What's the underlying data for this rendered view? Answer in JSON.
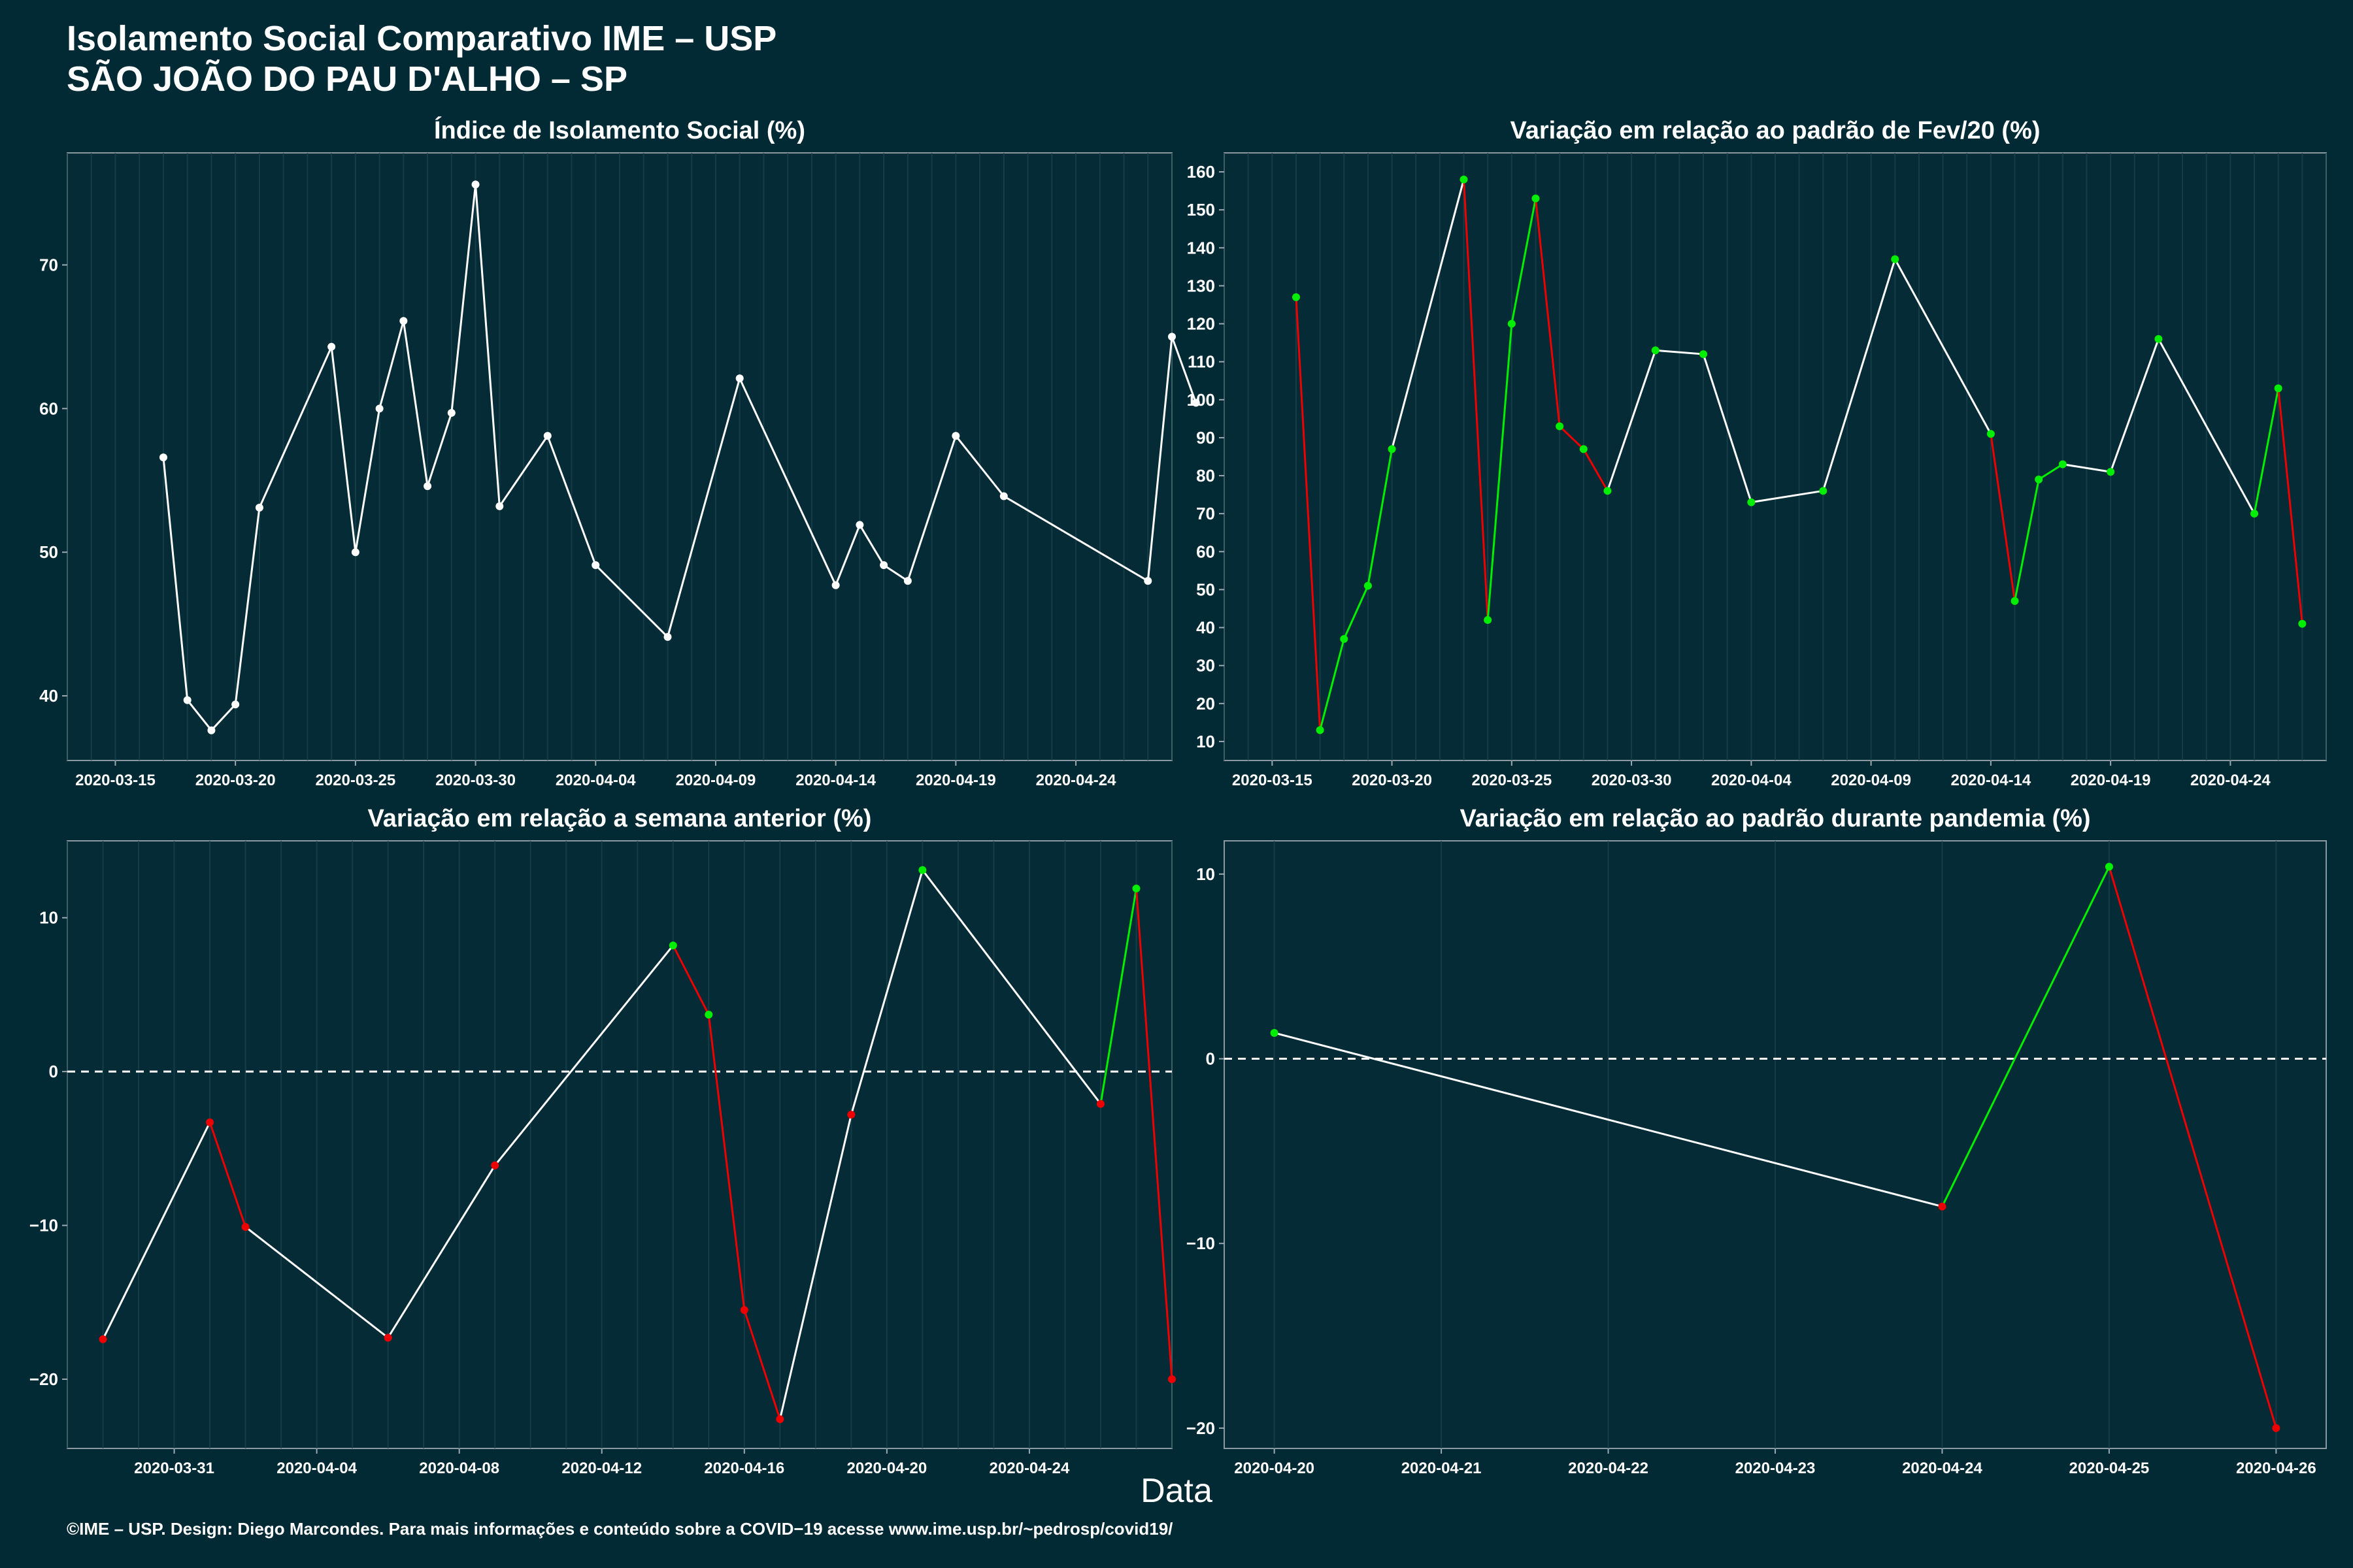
{
  "title": {
    "line1": "Isolamento Social Comparativo IME – USP",
    "line2": "SÃO JOÃO DO PAU D'ALHO – SP"
  },
  "xlabel": "Data",
  "footer": "©IME – USP. Design: Diego Marcondes. Para mais informações e conteúdo sobre a COVID−19 acesse www.ime.usp.br/~pedrosp/covid19/",
  "colors": {
    "background": "#022a35",
    "panel": "#042b36",
    "grid": "#1d4650",
    "line": "#ffffff",
    "up": "#00ee00",
    "down": "#ee0000"
  },
  "chart_data": [
    {
      "type": "line",
      "title": "Índice de Isolamento Social (%)",
      "xlabel": "",
      "ylabel": "",
      "xlim": [
        "2020-03-13",
        "2020-04-28"
      ],
      "ylim": [
        35.5,
        77.8
      ],
      "xticks": [
        "2020-03-15",
        "2020-03-20",
        "2020-03-25",
        "2020-03-30",
        "2020-04-04",
        "2020-04-09",
        "2020-04-14",
        "2020-04-19",
        "2020-04-24"
      ],
      "yticks": [
        40,
        50,
        60,
        70
      ],
      "grid": true,
      "color_mode": "white",
      "series": [
        {
          "x": [
            "2020-03-17",
            "2020-03-18",
            "2020-03-19",
            "2020-03-20",
            "2020-03-21",
            "2020-03-24",
            "2020-03-25",
            "2020-03-26",
            "2020-03-27",
            "2020-03-28",
            "2020-03-29",
            "2020-03-30",
            "2020-03-31",
            "2020-04-02",
            "2020-04-04",
            "2020-04-07",
            "2020-04-10",
            "2020-04-14",
            "2020-04-15",
            "2020-04-16",
            "2020-04-17",
            "2020-04-19",
            "2020-04-21",
            "2020-04-27",
            "2020-04-28",
            "2020-04-29"
          ],
          "y": [
            56.6,
            39.7,
            37.6,
            39.4,
            53.1,
            64.3,
            50.0,
            60.0,
            66.1,
            54.6,
            59.7,
            75.6,
            53.2,
            58.1,
            49.1,
            44.1,
            62.1,
            47.7,
            51.9,
            49.1,
            48.0,
            58.1,
            53.9,
            48.0,
            65.0,
            60.4
          ]
        }
      ]
    },
    {
      "type": "line",
      "title": "Variação em relação ao padrão de Fev/20 (%)",
      "xlabel": "",
      "ylabel": "",
      "xlim": [
        "2020-03-13",
        "2020-04-28"
      ],
      "ylim": [
        5,
        165
      ],
      "xticks": [
        "2020-03-15",
        "2020-03-20",
        "2020-03-25",
        "2020-03-30",
        "2020-04-04",
        "2020-04-09",
        "2020-04-14",
        "2020-04-19",
        "2020-04-24"
      ],
      "yticks": [
        10,
        20,
        30,
        40,
        50,
        60,
        70,
        80,
        90,
        100,
        110,
        120,
        130,
        140,
        150,
        160
      ],
      "grid": true,
      "color_mode": "consecutive",
      "series": [
        {
          "x": [
            "2020-03-16",
            "2020-03-17",
            "2020-03-18",
            "2020-03-19",
            "2020-03-20",
            "2020-03-23",
            "2020-03-24",
            "2020-03-25",
            "2020-03-26",
            "2020-03-27",
            "2020-03-28",
            "2020-03-29",
            "2020-03-31",
            "2020-04-02",
            "2020-04-04",
            "2020-04-07",
            "2020-04-10",
            "2020-04-14",
            "2020-04-15",
            "2020-04-16",
            "2020-04-17",
            "2020-04-19",
            "2020-04-21",
            "2020-04-25",
            "2020-04-26",
            "2020-04-27"
          ],
          "y": [
            127,
            13,
            37,
            51,
            87,
            158,
            42,
            120,
            153,
            93,
            87,
            76,
            113,
            112,
            73,
            76,
            137,
            91,
            47,
            79,
            83,
            81,
            116,
            70,
            103,
            41
          ]
        }
      ]
    },
    {
      "type": "line",
      "title": "Variação em relação a semana anterior (%)",
      "xlabel": "",
      "ylabel": "",
      "xlim": [
        "2020-03-28",
        "2020-04-28"
      ],
      "ylim": [
        -24.5,
        15
      ],
      "xticks": [
        "2020-03-31",
        "2020-04-04",
        "2020-04-08",
        "2020-04-12",
        "2020-04-16",
        "2020-04-20",
        "2020-04-24"
      ],
      "yticks": [
        -20,
        -10,
        0,
        10
      ],
      "zero_line": true,
      "grid": true,
      "color_mode": "consecutive",
      "series": [
        {
          "x": [
            "2020-03-29",
            "2020-04-01",
            "2020-04-02",
            "2020-04-06",
            "2020-04-09",
            "2020-04-14",
            "2020-04-15",
            "2020-04-16",
            "2020-04-17",
            "2020-04-19",
            "2020-04-21",
            "2020-04-26",
            "2020-04-27",
            "2020-04-28"
          ],
          "y": [
            -17.4,
            -3.3,
            -10.1,
            -17.3,
            -6.1,
            8.2,
            3.7,
            -15.5,
            -22.6,
            -2.8,
            13.1,
            -2.1,
            11.9,
            -20.0
          ]
        }
      ]
    },
    {
      "type": "line",
      "title": "Variação em relação ao padrão durante pandemia (%)",
      "xlabel": "",
      "ylabel": "",
      "xlim": [
        "2020-04-19.7",
        "2020-04-26.3"
      ],
      "ylim": [
        -21.1,
        11.8
      ],
      "xticks": [
        "2020-04-20",
        "2020-04-21",
        "2020-04-22",
        "2020-04-23",
        "2020-04-24",
        "2020-04-25",
        "2020-04-26"
      ],
      "yticks": [
        -20,
        -10,
        0,
        10
      ],
      "zero_line": true,
      "grid": true,
      "color_mode": "consecutive",
      "series": [
        {
          "x": [
            "2020-04-20",
            "2020-04-24",
            "2020-04-25",
            "2020-04-26"
          ],
          "y": [
            1.4,
            -8.0,
            10.4,
            -20.0
          ]
        }
      ]
    }
  ]
}
